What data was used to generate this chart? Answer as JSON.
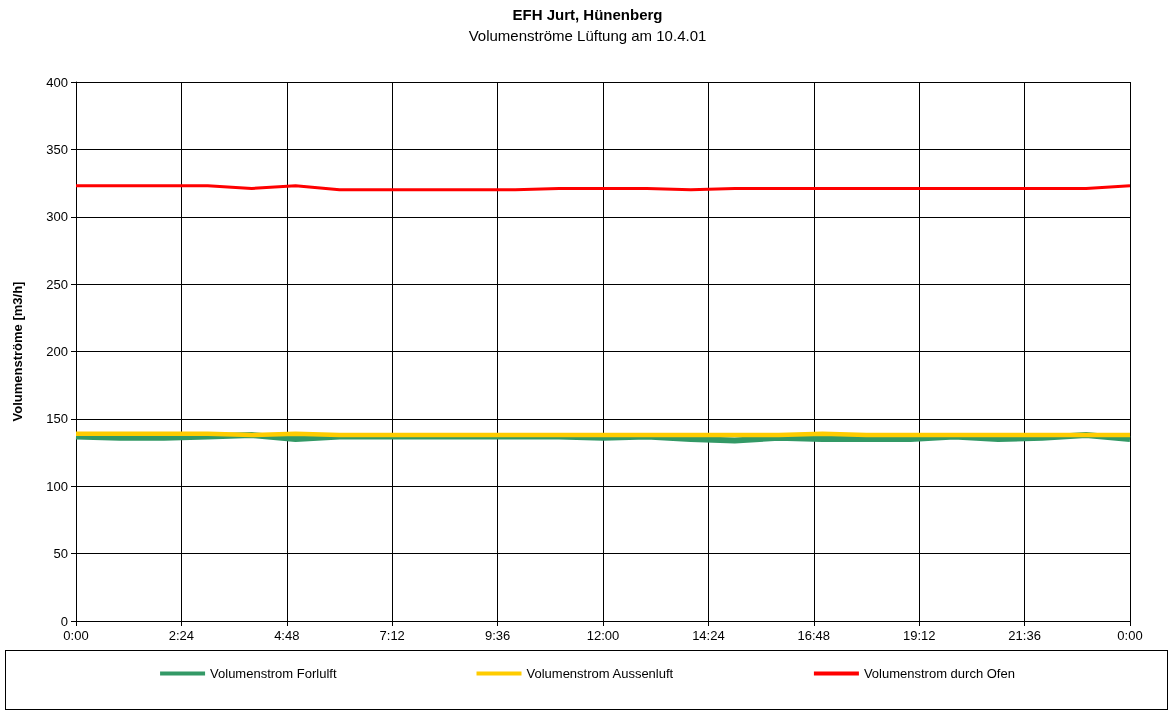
{
  "chart_data": {
    "type": "line",
    "title": "EFH Jurt, Hünenberg",
    "subtitle": "Volumenströme Lüftung am 10.4.01",
    "ylabel": "Volumenströme [m3/h]",
    "x": [
      0,
      1,
      2,
      3,
      4,
      5,
      6,
      7,
      8,
      9,
      10,
      11,
      12,
      13,
      14,
      15,
      16,
      17,
      18,
      19,
      20,
      21,
      22,
      23,
      24
    ],
    "series": [
      {
        "name": "Volumenstrom Forlulft",
        "color": "#339966",
        "values": [
          137,
          136,
          136,
          137,
          138,
          135,
          137,
          137,
          137,
          137,
          137,
          137,
          136,
          137,
          135,
          134,
          136,
          135,
          135,
          135,
          137,
          135,
          136,
          138,
          135
        ]
      },
      {
        "name": "Volumenstrom Aussenluft",
        "color": "#ffcc00",
        "values": [
          139,
          139,
          139,
          139,
          138,
          139,
          138,
          138,
          138,
          138,
          138,
          138,
          138,
          138,
          138,
          138,
          138,
          139,
          138,
          138,
          138,
          138,
          138,
          138,
          138
        ]
      },
      {
        "name": "Volumenstrom durch Ofen",
        "color": "#ff0000",
        "values": [
          323,
          323,
          323,
          323,
          321,
          323,
          320,
          320,
          320,
          320,
          320,
          321,
          321,
          321,
          320,
          321,
          321,
          321,
          321,
          321,
          321,
          321,
          321,
          321,
          323
        ]
      }
    ],
    "xlim": [
      0,
      24
    ],
    "xticks": [
      {
        "value": 0,
        "label": "0:00"
      },
      {
        "value": 2.4,
        "label": "2:24"
      },
      {
        "value": 4.8,
        "label": "4:48"
      },
      {
        "value": 7.2,
        "label": "7:12"
      },
      {
        "value": 9.6,
        "label": "9:36"
      },
      {
        "value": 12,
        "label": "12:00"
      },
      {
        "value": 14.4,
        "label": "14:24"
      },
      {
        "value": 16.8,
        "label": "16:48"
      },
      {
        "value": 19.2,
        "label": "19:12"
      },
      {
        "value": 21.6,
        "label": "21:36"
      },
      {
        "value": 24,
        "label": "0:00"
      }
    ],
    "ylim": [
      0,
      400
    ],
    "yticks": [
      0,
      50,
      100,
      150,
      200,
      250,
      300,
      350,
      400
    ],
    "grid": true,
    "legend": "bottom",
    "marker": "none",
    "line_style": "solid"
  }
}
